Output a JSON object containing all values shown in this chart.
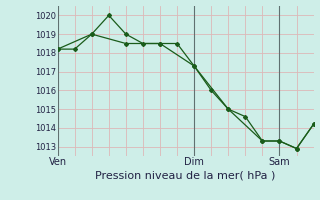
{
  "xlabel": "Pression niveau de la mer( hPa )",
  "bg_color": "#ceeee8",
  "grid_color_h": "#ddb8b8",
  "grid_color_v": "#ddb8b8",
  "line_color": "#1a5c1a",
  "ylim": [
    1012.5,
    1020.5
  ],
  "xlim": [
    0,
    15
  ],
  "yticks": [
    1013,
    1014,
    1015,
    1016,
    1017,
    1018,
    1019,
    1020
  ],
  "series1_x": [
    0,
    1,
    2,
    3,
    4,
    5,
    6,
    7,
    8,
    9,
    10,
    11,
    12,
    13,
    14,
    15
  ],
  "series1_y": [
    1018.2,
    1018.2,
    1019.0,
    1020.0,
    1019.0,
    1018.5,
    1018.5,
    1018.5,
    1017.3,
    1016.0,
    1015.0,
    1014.6,
    1013.3,
    1013.3,
    1012.9,
    1014.2
  ],
  "series2_x": [
    0,
    2,
    4,
    6,
    8,
    10,
    12,
    13,
    14,
    15
  ],
  "series2_y": [
    1018.2,
    1019.0,
    1018.5,
    1018.5,
    1017.3,
    1015.0,
    1013.3,
    1013.3,
    1012.9,
    1014.2
  ],
  "xtick_positions": [
    0,
    8,
    13
  ],
  "xtick_labels": [
    "Ven",
    "Dim",
    "Sam"
  ],
  "vline_positions": [
    0,
    8,
    13
  ],
  "vline_color": "#607070",
  "xlabel_fontsize": 8,
  "ytick_fontsize": 6,
  "xtick_fontsize": 7
}
